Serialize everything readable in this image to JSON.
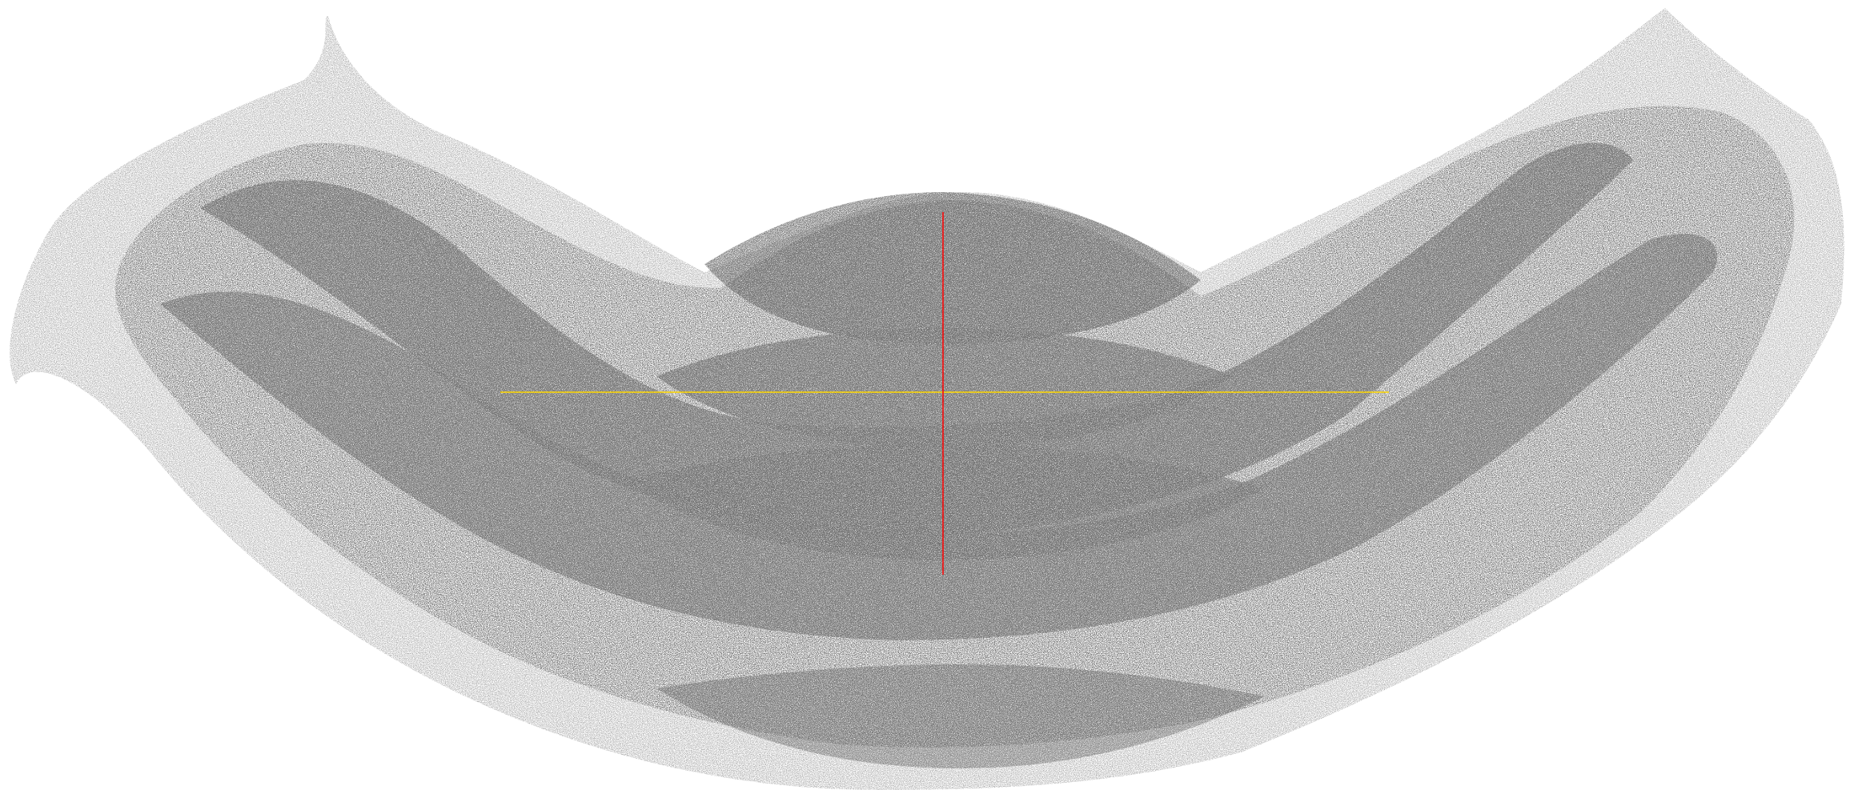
{
  "viewer": {
    "background_color": "#ffffff",
    "point_color": "#555555",
    "axis_x_color": "#ffd800",
    "axis_y_color": "#ff0000"
  }
}
